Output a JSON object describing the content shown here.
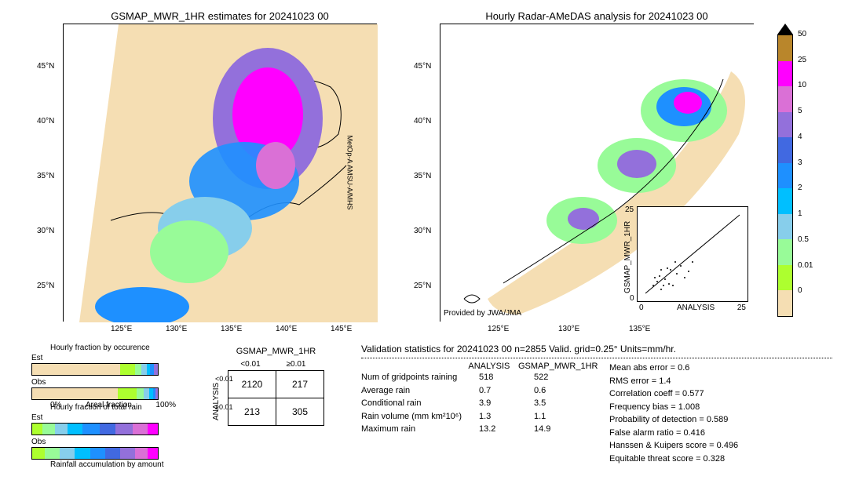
{
  "colorscale": {
    "colors": [
      "#b9862b",
      "#ff00ff",
      "#da70d6",
      "#9370db",
      "#4169e1",
      "#1e90ff",
      "#00bfff",
      "#87ceeb",
      "#98fb98",
      "#adff2f",
      "#f5deb3"
    ],
    "ticks": [
      "50",
      "25",
      "10",
      "5",
      "4",
      "3",
      "2",
      "1",
      "0.5",
      "0.01",
      "0"
    ]
  },
  "map_left": {
    "title": "GSMAP_MWR_1HR estimates for 20241023 00",
    "side_label": "MetOp-A\nAMSU-A/MHS",
    "lat_ticks": [
      "45°N",
      "40°N",
      "35°N",
      "30°N",
      "25°N"
    ],
    "lon_ticks": [
      "125°E",
      "130°E",
      "135°E",
      "140°E",
      "145°E"
    ],
    "bg": "#ffffff"
  },
  "map_right": {
    "title": "Hourly Radar-AMeDAS analysis for 20241023 00",
    "lat_ticks": [
      "45°N",
      "40°N",
      "35°N",
      "30°N",
      "25°N"
    ],
    "lon_ticks": [
      "125°E",
      "130°E",
      "135°E"
    ],
    "provided": "Provided by JWA/JMA",
    "bg": "#ffffff"
  },
  "scatter": {
    "xlabel": "ANALYSIS",
    "ylabel": "GSMAP_MWR_1HR",
    "max": 25
  },
  "fraction_occurrence": {
    "title": "Hourly fraction by occurence",
    "rows": [
      "Est",
      "Obs"
    ],
    "xleft": "0%",
    "xmid": "Areal fraction",
    "xright": "100%",
    "est_segs": [
      [
        "#f5deb3",
        70
      ],
      [
        "#adff2f",
        12
      ],
      [
        "#98fb98",
        5
      ],
      [
        "#87ceeb",
        4
      ],
      [
        "#00bfff",
        3
      ],
      [
        "#1e90ff",
        3
      ],
      [
        "#9370db",
        3
      ]
    ],
    "obs_segs": [
      [
        "#f5deb3",
        68
      ],
      [
        "#adff2f",
        15
      ],
      [
        "#98fb98",
        6
      ],
      [
        "#87ceeb",
        4
      ],
      [
        "#00bfff",
        3
      ],
      [
        "#1e90ff",
        2
      ],
      [
        "#9370db",
        2
      ]
    ]
  },
  "fraction_total": {
    "title": "Hourly fraction of total rain",
    "rows": [
      "Est",
      "Obs"
    ],
    "caption": "Rainfall accumulation by amount",
    "est_segs": [
      [
        "#adff2f",
        8
      ],
      [
        "#98fb98",
        10
      ],
      [
        "#87ceeb",
        10
      ],
      [
        "#00bfff",
        12
      ],
      [
        "#1e90ff",
        14
      ],
      [
        "#4169e1",
        12
      ],
      [
        "#9370db",
        14
      ],
      [
        "#da70d6",
        12
      ],
      [
        "#ff00ff",
        8
      ]
    ],
    "obs_segs": [
      [
        "#adff2f",
        10
      ],
      [
        "#98fb98",
        12
      ],
      [
        "#87ceeb",
        12
      ],
      [
        "#00bfff",
        12
      ],
      [
        "#1e90ff",
        12
      ],
      [
        "#4169e1",
        12
      ],
      [
        "#9370db",
        12
      ],
      [
        "#da70d6",
        10
      ],
      [
        "#ff00ff",
        8
      ]
    ]
  },
  "contingency": {
    "col_header": "GSMAP_MWR_1HR",
    "row_header": "ANALYSIS",
    "col_labels": [
      "<0.01",
      "≥0.01"
    ],
    "row_labels": [
      "<0.01",
      "≥0.01"
    ],
    "cells": [
      [
        "2120",
        "217"
      ],
      [
        "213",
        "305"
      ]
    ]
  },
  "validation": {
    "header": "Validation statistics for 20241023 00  n=2855 Valid. grid=0.25°  Units=mm/hr.",
    "col_headers": [
      "ANALYSIS",
      "GSMAP_MWR_1HR"
    ],
    "rows": [
      {
        "label": "Num of gridpoints raining",
        "a": "518",
        "g": "522"
      },
      {
        "label": "Average rain",
        "a": "0.7",
        "g": "0.6"
      },
      {
        "label": "Conditional rain",
        "a": "3.9",
        "g": "3.5"
      },
      {
        "label": "Rain volume (mm km²10⁶)",
        "a": "1.3",
        "g": "1.1"
      },
      {
        "label": "Maximum rain",
        "a": "13.2",
        "g": "14.9"
      }
    ],
    "metrics": [
      [
        "Mean abs error =",
        "0.6"
      ],
      [
        "RMS error =",
        "1.4"
      ],
      [
        "Correlation coeff =",
        "0.577"
      ],
      [
        "Frequency bias =",
        "1.008"
      ],
      [
        "Probability of detection =",
        "0.589"
      ],
      [
        "False alarm ratio =",
        "0.416"
      ],
      [
        "Hanssen & Kuipers score =",
        "0.496"
      ],
      [
        "Equitable threat score =",
        "0.328"
      ]
    ]
  }
}
